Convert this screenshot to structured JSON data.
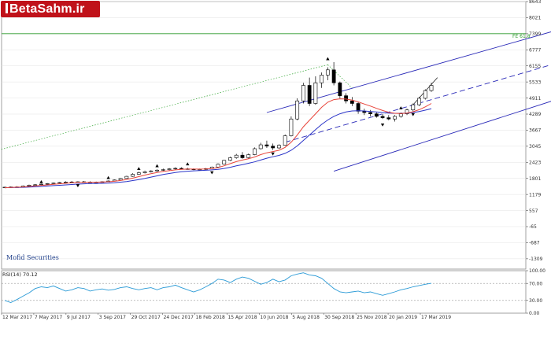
{
  "brand": {
    "logo_text": "BetaSahm.ir",
    "watermark": "Mofid Securities"
  },
  "chart_data": [
    {
      "type": "candlestick",
      "y_ticks": [
        "8643",
        "8021",
        "7399",
        "6777",
        "6155",
        "5533",
        "4911",
        "4289",
        "3667",
        "3045",
        "2423",
        "1801",
        "1179",
        "557",
        "-65",
        "-687",
        "-1309"
      ],
      "ylim": [
        -1709,
        8643
      ],
      "x_ticks": [
        "12 Mar 2017",
        "7 May 2017",
        "9 Jul 2017",
        "3 Sep 2017",
        "29 Oct 2017",
        "24 Dec 2017",
        "18 Feb 2018",
        "15 Apr 2018",
        "10 Jun 2018",
        "5 Aug 2018",
        "30 Sep 2018",
        "25 Nov 2018",
        "20 Jan 2019",
        "17 Mar 2019"
      ],
      "fib_label": "FE 61.8",
      "fib_level": 7399,
      "fib_color": "#2e9a2e",
      "ma_fast_color": "#e8443a",
      "ma_slow_color": "#2a34c8",
      "channel_color": "#2a2ab8",
      "candles": [
        [
          1450,
          1475,
          1440,
          1460
        ],
        [
          1460,
          1490,
          1450,
          1470
        ],
        [
          1470,
          1500,
          1455,
          1465
        ],
        [
          1465,
          1530,
          1460,
          1510
        ],
        [
          1510,
          1560,
          1500,
          1540
        ],
        [
          1540,
          1580,
          1520,
          1555
        ],
        [
          1555,
          1600,
          1540,
          1580
        ],
        [
          1580,
          1620,
          1560,
          1600
        ],
        [
          1600,
          1640,
          1580,
          1620
        ],
        [
          1620,
          1660,
          1600,
          1640
        ],
        [
          1640,
          1690,
          1620,
          1660
        ],
        [
          1660,
          1700,
          1640,
          1650
        ],
        [
          1650,
          1690,
          1630,
          1670
        ],
        [
          1670,
          1700,
          1650,
          1660
        ],
        [
          1660,
          1690,
          1640,
          1650
        ],
        [
          1650,
          1680,
          1630,
          1660
        ],
        [
          1660,
          1690,
          1640,
          1670
        ],
        [
          1670,
          1720,
          1660,
          1700
        ],
        [
          1700,
          1760,
          1690,
          1740
        ],
        [
          1740,
          1820,
          1730,
          1800
        ],
        [
          1800,
          1900,
          1790,
          1880
        ],
        [
          1880,
          2000,
          1860,
          1960
        ],
        [
          1960,
          2060,
          1940,
          2020
        ],
        [
          2020,
          2100,
          1990,
          2060
        ],
        [
          2060,
          2120,
          2030,
          2090
        ],
        [
          2090,
          2150,
          2060,
          2120
        ],
        [
          2120,
          2180,
          2090,
          2140
        ],
        [
          2140,
          2200,
          2110,
          2170
        ],
        [
          2170,
          2230,
          2140,
          2190
        ],
        [
          2190,
          2230,
          2150,
          2170
        ],
        [
          2170,
          2210,
          2140,
          2160
        ],
        [
          2160,
          2190,
          2120,
          2140
        ],
        [
          2140,
          2180,
          2110,
          2150
        ],
        [
          2150,
          2200,
          2120,
          2180
        ],
        [
          2180,
          2260,
          2160,
          2240
        ],
        [
          2240,
          2380,
          2220,
          2350
        ],
        [
          2350,
          2520,
          2330,
          2500
        ],
        [
          2500,
          2640,
          2470,
          2600
        ],
        [
          2600,
          2750,
          2560,
          2700
        ],
        [
          2700,
          2820,
          2560,
          2600
        ],
        [
          2600,
          2760,
          2560,
          2720
        ],
        [
          2720,
          3000,
          2700,
          2950
        ],
        [
          2950,
          3180,
          2920,
          3100
        ],
        [
          3100,
          3260,
          2980,
          3050
        ],
        [
          3050,
          3150,
          2900,
          2980
        ],
        [
          2980,
          3120,
          2950,
          3080
        ],
        [
          3080,
          3500,
          3060,
          3450
        ],
        [
          3450,
          4200,
          3420,
          4100
        ],
        [
          4100,
          4900,
          4050,
          4800
        ],
        [
          4800,
          5500,
          4700,
          5400
        ],
        [
          5400,
          5700,
          4600,
          4700
        ],
        [
          4700,
          5750,
          4650,
          5500
        ],
        [
          5500,
          5900,
          5300,
          5800
        ],
        [
          5800,
          6100,
          5600,
          6000
        ],
        [
          6000,
          6300,
          5400,
          5500
        ],
        [
          5500,
          5550,
          4900,
          5000
        ],
        [
          5000,
          5100,
          4700,
          4800
        ],
        [
          4800,
          4950,
          4600,
          4700
        ],
        [
          4700,
          4750,
          4300,
          4400
        ],
        [
          4400,
          4500,
          4250,
          4350
        ],
        [
          4350,
          4450,
          4200,
          4300
        ],
        [
          4300,
          4350,
          4150,
          4200
        ],
        [
          4200,
          4300,
          4100,
          4150
        ],
        [
          4150,
          4250,
          4050,
          4100
        ],
        [
          4100,
          4250,
          4000,
          4200
        ],
        [
          4200,
          4350,
          4150,
          4300
        ],
        [
          4300,
          4500,
          4250,
          4450
        ],
        [
          4450,
          4700,
          4400,
          4650
        ],
        [
          4650,
          4950,
          4600,
          4900
        ],
        [
          4900,
          5250,
          4850,
          5200
        ],
        [
          5200,
          5500,
          5150,
          5400
        ]
      ],
      "ma_fast": [
        1440,
        1450,
        1460,
        1470,
        1490,
        1510,
        1530,
        1550,
        1570,
        1590,
        1610,
        1630,
        1640,
        1650,
        1655,
        1655,
        1660,
        1670,
        1690,
        1720,
        1760,
        1810,
        1870,
        1930,
        1980,
        2030,
        2070,
        2100,
        2130,
        2150,
        2160,
        2160,
        2160,
        2165,
        2180,
        2220,
        2290,
        2370,
        2450,
        2510,
        2560,
        2630,
        2720,
        2790,
        2840,
        2890,
        3000,
        3200,
        3480,
        3800,
        4050,
        4300,
        4550,
        4750,
        4850,
        4880,
        4870,
        4830,
        4760,
        4680,
        4600,
        4510,
        4430,
        4360,
        4320,
        4310,
        4330,
        4380,
        4460,
        4570,
        4700
      ],
      "ma_slow": [
        1440,
        1445,
        1450,
        1455,
        1465,
        1475,
        1490,
        1505,
        1520,
        1535,
        1550,
        1565,
        1580,
        1590,
        1600,
        1605,
        1610,
        1620,
        1635,
        1655,
        1680,
        1715,
        1755,
        1800,
        1850,
        1900,
        1950,
        1990,
        2030,
        2060,
        2080,
        2095,
        2105,
        2115,
        2130,
        2150,
        2185,
        2230,
        2285,
        2335,
        2385,
        2440,
        2510,
        2580,
        2640,
        2690,
        2770,
        2890,
        3060,
        3270,
        3480,
        3690,
        3890,
        4060,
        4200,
        4300,
        4370,
        4410,
        4420,
        4410,
        4390,
        4370,
        4350,
        4330,
        4320,
        4320,
        4330,
        4350,
        4390,
        4440,
        4500
      ],
      "fractals_up": [
        [
          6,
          1640
        ],
        [
          17,
          1800
        ],
        [
          22,
          2150
        ],
        [
          25,
          2260
        ],
        [
          30,
          2330
        ],
        [
          53,
          6400
        ],
        [
          65,
          4500
        ]
      ],
      "fractals_down": [
        [
          12,
          1550
        ],
        [
          34,
          2050
        ],
        [
          44,
          2780
        ],
        [
          62,
          3900
        ],
        [
          67,
          4300
        ]
      ]
    },
    {
      "type": "line",
      "name": "RSI(14)",
      "label": "RSI(14) 70.12",
      "y_ticks": [
        "100.00",
        "70.00",
        "30.00",
        "0.00"
      ],
      "ylim": [
        0,
        100
      ],
      "line_color": "#2a9ad6",
      "values": [
        30,
        25,
        32,
        40,
        48,
        58,
        62,
        60,
        64,
        58,
        52,
        55,
        60,
        58,
        52,
        55,
        57,
        54,
        56,
        60,
        62,
        58,
        55,
        58,
        60,
        55,
        60,
        62,
        66,
        60,
        55,
        50,
        55,
        62,
        70,
        80,
        78,
        72,
        80,
        85,
        82,
        75,
        68,
        72,
        80,
        74,
        78,
        88,
        92,
        95,
        90,
        88,
        82,
        70,
        58,
        50,
        48,
        50,
        52,
        48,
        50,
        46,
        42,
        46,
        50,
        55,
        58,
        62,
        65,
        68,
        70.12
      ]
    }
  ]
}
